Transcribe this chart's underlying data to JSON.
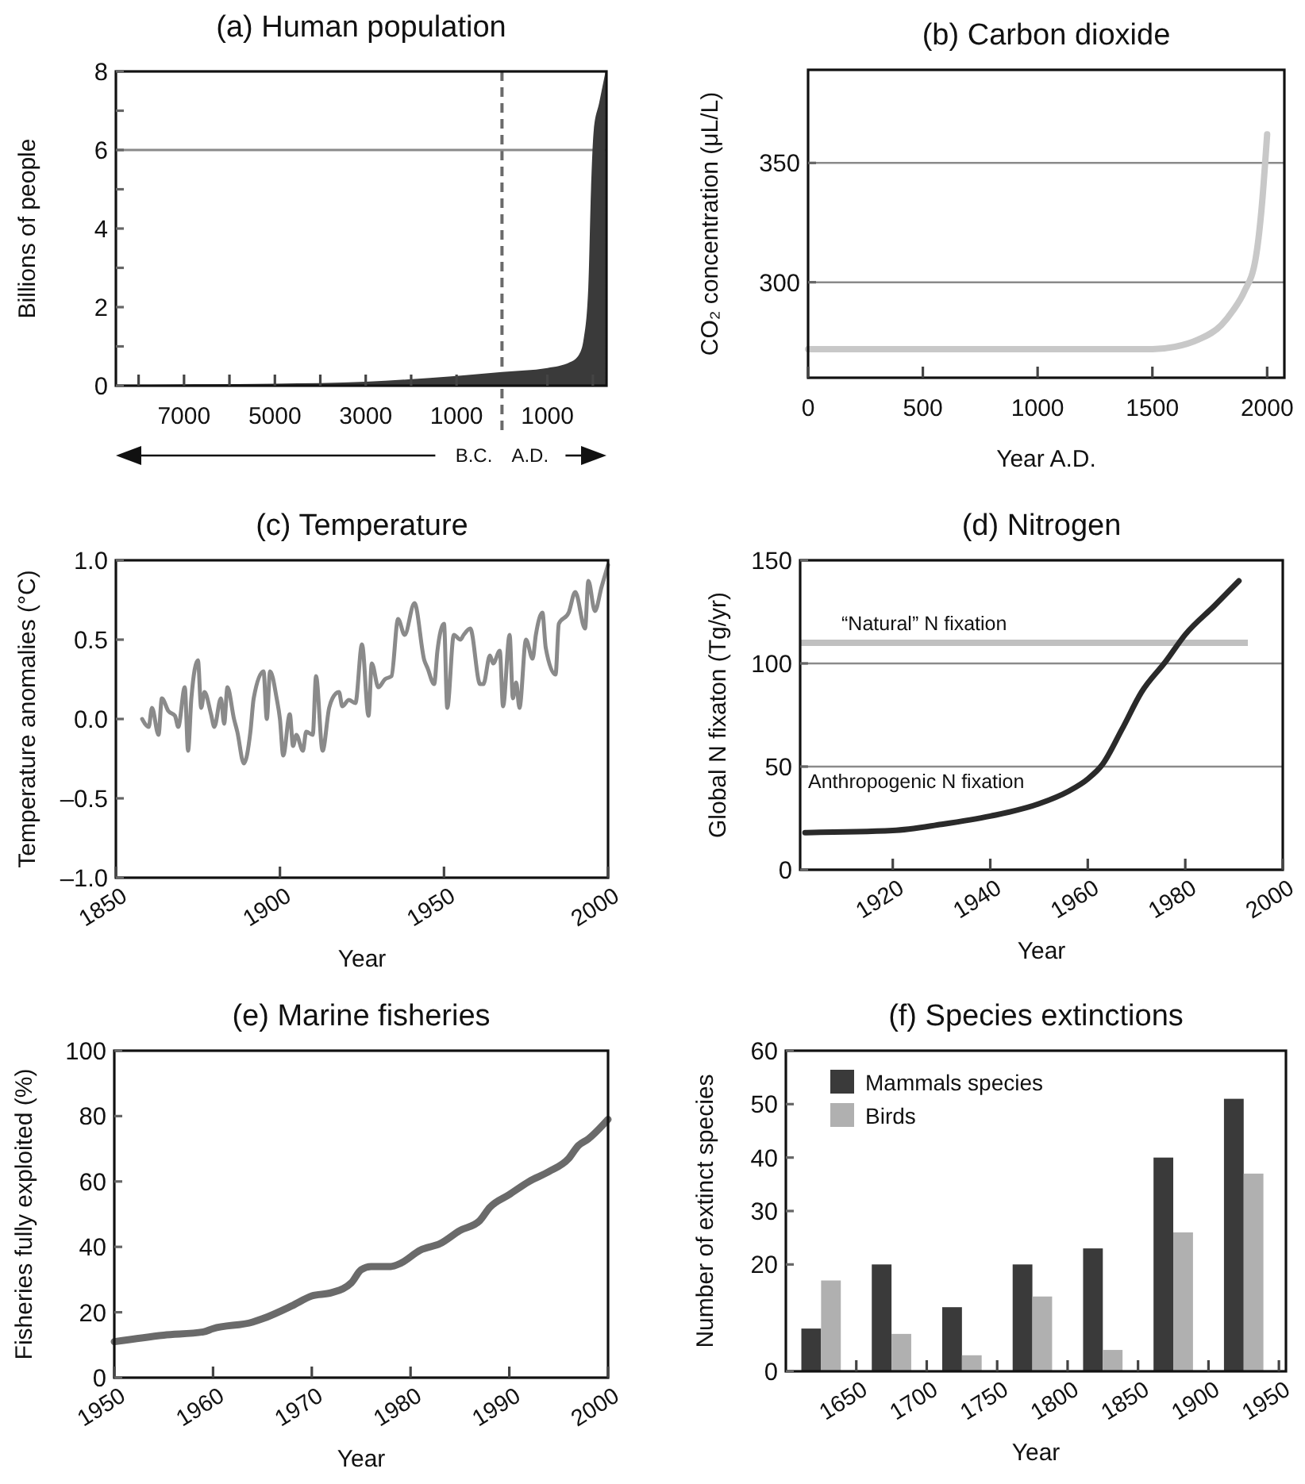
{
  "chart_data": [
    {
      "type": "area",
      "title": "(a) Human population",
      "ylabel": "Billions of people",
      "x": [
        -8500,
        -7000,
        -5000,
        -3000,
        -1000,
        0,
        1000,
        1500,
        1700,
        1800,
        1900,
        1960,
        2020,
        2140,
        2280
      ],
      "values": [
        0.01,
        0.03,
        0.05,
        0.1,
        0.25,
        0.35,
        0.45,
        0.6,
        0.8,
        1.2,
        2.5,
        5,
        6.5,
        7.2,
        8
      ],
      "color": "#3a3a3a",
      "xlim": [
        -8500,
        2300
      ],
      "ylim": [
        0,
        8
      ],
      "xticks": [
        {
          "value": -8000,
          "label": null
        },
        {
          "value": -7000,
          "label": "7000"
        },
        {
          "value": -6000,
          "label": null
        },
        {
          "value": -5000,
          "label": "5000"
        },
        {
          "value": -4000,
          "label": null
        },
        {
          "value": -3000,
          "label": "3000"
        },
        {
          "value": -2000,
          "label": null
        },
        {
          "value": -1000,
          "label": "1000"
        },
        1000,
        {
          "value": 2000,
          "label": null
        }
      ],
      "yticks": [
        0,
        {
          "value": 1,
          "label": null
        },
        2,
        {
          "value": 3,
          "label": null
        },
        4,
        {
          "value": 5,
          "label": null
        },
        6,
        {
          "value": 7,
          "label": null
        },
        8
      ],
      "ref_lines": [
        {
          "axis": "x",
          "value": 0,
          "label": null,
          "color": "#6a6a6a",
          "line_style": "dashed"
        },
        {
          "axis": "y",
          "value": 6,
          "label": null,
          "color": "#8a8a8a"
        }
      ],
      "annotations": [
        "B.C.",
        "A.D."
      ]
    },
    {
      "type": "line",
      "title": "(b) Carbon dioxide",
      "xlabel": "Year A.D.",
      "ylabel": "CO₂ concentration (μL/L)",
      "x": [
        0,
        500,
        1000,
        1500,
        1600,
        1700,
        1800,
        1850,
        1900,
        1950,
        1975,
        2000
      ],
      "values": [
        272,
        272,
        272,
        272,
        273,
        276,
        282,
        288,
        296,
        310,
        330,
        362
      ],
      "color": "#c8c8c8",
      "xlim": [
        0,
        2075
      ],
      "ylim": [
        260,
        389
      ],
      "xticks": [
        0,
        500,
        1000,
        1500,
        2000
      ],
      "yticks": [
        300,
        350
      ],
      "grid": "y"
    },
    {
      "type": "line",
      "title": "(c) Temperature",
      "xlabel": "Year",
      "ylabel": "Temperature anomalies (°C)",
      "x": [
        1858,
        1860,
        1861,
        1863,
        1864,
        1866,
        1868,
        1869,
        1871,
        1872,
        1873,
        1875,
        1876,
        1877,
        1879,
        1880,
        1882,
        1883,
        1884,
        1886,
        1887,
        1889,
        1891,
        1892,
        1895,
        1896,
        1897,
        1899,
        1900,
        1901,
        1903,
        1904,
        1905,
        1907,
        1908,
        1910,
        1911,
        1913,
        1915,
        1916,
        1918,
        1919,
        1921,
        1923,
        1925,
        1927,
        1928,
        1930,
        1932,
        1934,
        1936,
        1938,
        1941,
        1944,
        1945,
        1947,
        1948,
        1950,
        1951,
        1953,
        1955,
        1956,
        1958,
        1961,
        1962,
        1964,
        1965,
        1967,
        1968,
        1970,
        1971,
        1972,
        1973,
        1975,
        1977,
        1978,
        1980,
        1981,
        1984,
        1985,
        1988,
        1990,
        1993,
        1994,
        1996,
        1998,
        2000
      ],
      "values": [
        0,
        -0.05,
        0.07,
        -0.1,
        0.13,
        0.05,
        0.02,
        -0.05,
        0.2,
        -0.2,
        0.13,
        0.37,
        0.07,
        0.17,
        0.03,
        -0.05,
        0.13,
        -0.03,
        0.2,
        0,
        -0.08,
        -0.28,
        -0.08,
        0.13,
        0.3,
        0,
        0.3,
        0.13,
        0,
        -0.23,
        0.03,
        -0.17,
        -0.1,
        -0.2,
        -0.08,
        -0.1,
        0.27,
        -0.2,
        0.07,
        0.13,
        0.17,
        0.08,
        0.12,
        0.1,
        0.47,
        0.02,
        0.35,
        0.2,
        0.25,
        0.27,
        0.63,
        0.53,
        0.73,
        0.37,
        0.32,
        0.22,
        0.43,
        0.6,
        0.07,
        0.53,
        0.5,
        0.53,
        0.57,
        0.22,
        0.22,
        0.4,
        0.35,
        0.43,
        0.08,
        0.53,
        0.13,
        0.23,
        0.07,
        0.5,
        0.38,
        0.53,
        0.67,
        0.45,
        0.28,
        0.6,
        0.67,
        0.8,
        0.57,
        0.87,
        0.68,
        0.83,
        0.97
      ],
      "color": "#8a8a8a",
      "xlim": [
        1850,
        2000
      ],
      "ylim": [
        -1,
        1
      ],
      "xticks": [
        1850,
        1900,
        1950,
        2000
      ],
      "yticks": [
        {
          "value": -1,
          "label": "–1.0"
        },
        {
          "value": -0.5,
          "label": "–0.5"
        },
        {
          "value": 0,
          "label": "0.0"
        },
        0.5,
        {
          "value": 1,
          "label": "1.0"
        }
      ]
    },
    {
      "type": "line",
      "title": "(d) Nitrogen",
      "xlabel": "Year",
      "ylabel": "Global N fixaton (Tg/yr)",
      "series": [
        {
          "name": "Anthropogenic N fixation",
          "color": "#2a2a2a",
          "x": [
            1902,
            1920,
            1930,
            1940,
            1950,
            1956,
            1960,
            1963,
            1967,
            1971,
            1976,
            1980,
            1986,
            1991
          ],
          "values": [
            18,
            19,
            22,
            26,
            32,
            38,
            44,
            51,
            68,
            86,
            101,
            114,
            128,
            140
          ]
        }
      ],
      "xlim": [
        1901,
        2000
      ],
      "ylim": [
        0,
        150
      ],
      "xticks": [
        1920,
        1940,
        1960,
        1980,
        2000
      ],
      "yticks": [
        0,
        50,
        100,
        150
      ],
      "grid": "y",
      "ref_lines": [
        {
          "axis": "y",
          "value": 110,
          "label": "“Natural” N fixation",
          "color": "#c0c0c0"
        }
      ]
    },
    {
      "type": "line",
      "title": "(e) Marine fisheries",
      "xlabel": "Year",
      "ylabel": "Fisheries fully exploited (%)",
      "x": [
        1950,
        1955,
        1959,
        1960,
        1964,
        1965,
        1968,
        1970,
        1972,
        1974,
        1975,
        1976,
        1978,
        1979,
        1981,
        1983,
        1985,
        1987,
        1988,
        1990,
        1992,
        1994,
        1996,
        1997,
        1998,
        2000
      ],
      "values": [
        11,
        13,
        14,
        15,
        17,
        18,
        22,
        25,
        26,
        29,
        33,
        34,
        34,
        35,
        39,
        41,
        45,
        48,
        52,
        56,
        60,
        63,
        67,
        71,
        73,
        79
      ],
      "color": "#6a6a6a",
      "xlim": [
        1950,
        2000
      ],
      "ylim": [
        0,
        100
      ],
      "xticks": [
        1950,
        1960,
        1970,
        1980,
        1990,
        2000
      ],
      "yticks": [
        0,
        20,
        40,
        60,
        80,
        100
      ]
    },
    {
      "type": "bar",
      "title": "(f) Species extinctions",
      "xlabel": "Year",
      "ylabel": "Number of extinct species",
      "x": [
        1625,
        1675,
        1725,
        1775,
        1825,
        1875,
        1925
      ],
      "series": [
        {
          "name": "Mammals species",
          "color": "#3a3a3a",
          "values": [
            8,
            20,
            12,
            20,
            23,
            40,
            51
          ]
        },
        {
          "name": "Birds",
          "color": "#b0b0b0",
          "values": [
            17,
            7,
            3,
            14,
            4,
            26,
            37
          ]
        }
      ],
      "xlim": [
        1600,
        1955
      ],
      "ylim": [
        0,
        60
      ],
      "xticks": [
        1650,
        1700,
        1750,
        1800,
        1850,
        1900,
        1950
      ],
      "yticks": [
        0,
        20,
        30,
        40,
        50,
        60
      ],
      "legend": "top left"
    }
  ]
}
